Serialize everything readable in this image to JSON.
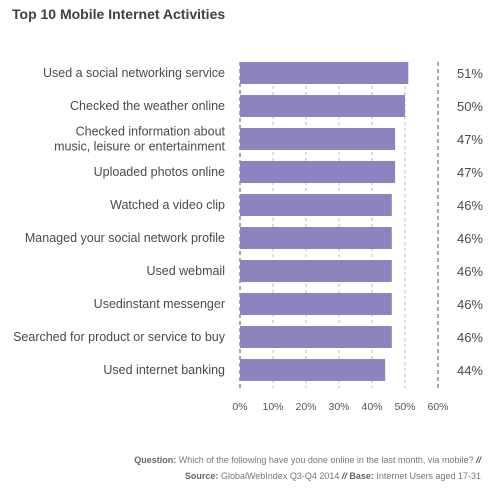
{
  "chart_data": {
    "type": "bar",
    "orientation": "horizontal",
    "title": "Top 10 Mobile Internet Activities",
    "categories": [
      "Used a social networking service",
      "Checked the weather online",
      [
        "Checked information about",
        "music, leisure or entertainment"
      ],
      "Uploaded photos online",
      "Watched a video clip",
      "Managed your social network profile",
      "Used webmail",
      "Usedinstant messenger",
      "Searched for product or service to buy",
      "Used internet banking"
    ],
    "values": [
      51,
      50,
      47,
      47,
      46,
      46,
      46,
      46,
      46,
      44
    ],
    "value_labels": [
      "51%",
      "50%",
      "47%",
      "47%",
      "46%",
      "46%",
      "46%",
      "46%",
      "46%",
      "44%"
    ],
    "xlim": [
      0,
      60
    ],
    "ticks": [
      0,
      10,
      20,
      30,
      40,
      50,
      60
    ],
    "tick_labels": [
      "0%",
      "10%",
      "20%",
      "30%",
      "40%",
      "50%",
      "60%"
    ],
    "bar_color": "#8d84bf",
    "grid": true
  },
  "footer": {
    "question_label": "Question:",
    "question_text": "Which of the following have you done online in the last month, via mobile?",
    "source_label": "Source:",
    "source_text": "GlobalWebIndex Q3-Q4 2014",
    "base_label": "Base:",
    "base_text": "Internet Users aged 17-31",
    "separator": "//"
  }
}
